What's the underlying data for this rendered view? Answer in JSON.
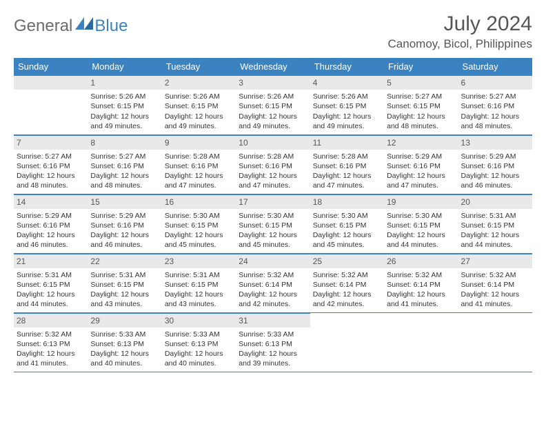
{
  "logo": {
    "word1": "General",
    "word2": "Blue",
    "triangle_color": "#3b83c0"
  },
  "title": "July 2024",
  "location": "Canomoy, Bicol, Philippines",
  "header_bg": "#3b83c0",
  "header_text_color": "#ffffff",
  "daynum_bg": "#e9e9e9",
  "border_color": "#3b83c0",
  "days_of_week": [
    "Sunday",
    "Monday",
    "Tuesday",
    "Wednesday",
    "Thursday",
    "Friday",
    "Saturday"
  ],
  "start_offset": 1,
  "days": [
    {
      "n": 1,
      "sunrise": "5:26 AM",
      "sunset": "6:15 PM",
      "daylight": "12 hours and 49 minutes."
    },
    {
      "n": 2,
      "sunrise": "5:26 AM",
      "sunset": "6:15 PM",
      "daylight": "12 hours and 49 minutes."
    },
    {
      "n": 3,
      "sunrise": "5:26 AM",
      "sunset": "6:15 PM",
      "daylight": "12 hours and 49 minutes."
    },
    {
      "n": 4,
      "sunrise": "5:26 AM",
      "sunset": "6:15 PM",
      "daylight": "12 hours and 49 minutes."
    },
    {
      "n": 5,
      "sunrise": "5:27 AM",
      "sunset": "6:15 PM",
      "daylight": "12 hours and 48 minutes."
    },
    {
      "n": 6,
      "sunrise": "5:27 AM",
      "sunset": "6:16 PM",
      "daylight": "12 hours and 48 minutes."
    },
    {
      "n": 7,
      "sunrise": "5:27 AM",
      "sunset": "6:16 PM",
      "daylight": "12 hours and 48 minutes."
    },
    {
      "n": 8,
      "sunrise": "5:27 AM",
      "sunset": "6:16 PM",
      "daylight": "12 hours and 48 minutes."
    },
    {
      "n": 9,
      "sunrise": "5:28 AM",
      "sunset": "6:16 PM",
      "daylight": "12 hours and 47 minutes."
    },
    {
      "n": 10,
      "sunrise": "5:28 AM",
      "sunset": "6:16 PM",
      "daylight": "12 hours and 47 minutes."
    },
    {
      "n": 11,
      "sunrise": "5:28 AM",
      "sunset": "6:16 PM",
      "daylight": "12 hours and 47 minutes."
    },
    {
      "n": 12,
      "sunrise": "5:29 AM",
      "sunset": "6:16 PM",
      "daylight": "12 hours and 47 minutes."
    },
    {
      "n": 13,
      "sunrise": "5:29 AM",
      "sunset": "6:16 PM",
      "daylight": "12 hours and 46 minutes."
    },
    {
      "n": 14,
      "sunrise": "5:29 AM",
      "sunset": "6:16 PM",
      "daylight": "12 hours and 46 minutes."
    },
    {
      "n": 15,
      "sunrise": "5:29 AM",
      "sunset": "6:16 PM",
      "daylight": "12 hours and 46 minutes."
    },
    {
      "n": 16,
      "sunrise": "5:30 AM",
      "sunset": "6:15 PM",
      "daylight": "12 hours and 45 minutes."
    },
    {
      "n": 17,
      "sunrise": "5:30 AM",
      "sunset": "6:15 PM",
      "daylight": "12 hours and 45 minutes."
    },
    {
      "n": 18,
      "sunrise": "5:30 AM",
      "sunset": "6:15 PM",
      "daylight": "12 hours and 45 minutes."
    },
    {
      "n": 19,
      "sunrise": "5:30 AM",
      "sunset": "6:15 PM",
      "daylight": "12 hours and 44 minutes."
    },
    {
      "n": 20,
      "sunrise": "5:31 AM",
      "sunset": "6:15 PM",
      "daylight": "12 hours and 44 minutes."
    },
    {
      "n": 21,
      "sunrise": "5:31 AM",
      "sunset": "6:15 PM",
      "daylight": "12 hours and 44 minutes."
    },
    {
      "n": 22,
      "sunrise": "5:31 AM",
      "sunset": "6:15 PM",
      "daylight": "12 hours and 43 minutes."
    },
    {
      "n": 23,
      "sunrise": "5:31 AM",
      "sunset": "6:15 PM",
      "daylight": "12 hours and 43 minutes."
    },
    {
      "n": 24,
      "sunrise": "5:32 AM",
      "sunset": "6:14 PM",
      "daylight": "12 hours and 42 minutes."
    },
    {
      "n": 25,
      "sunrise": "5:32 AM",
      "sunset": "6:14 PM",
      "daylight": "12 hours and 42 minutes."
    },
    {
      "n": 26,
      "sunrise": "5:32 AM",
      "sunset": "6:14 PM",
      "daylight": "12 hours and 41 minutes."
    },
    {
      "n": 27,
      "sunrise": "5:32 AM",
      "sunset": "6:14 PM",
      "daylight": "12 hours and 41 minutes."
    },
    {
      "n": 28,
      "sunrise": "5:32 AM",
      "sunset": "6:13 PM",
      "daylight": "12 hours and 41 minutes."
    },
    {
      "n": 29,
      "sunrise": "5:33 AM",
      "sunset": "6:13 PM",
      "daylight": "12 hours and 40 minutes."
    },
    {
      "n": 30,
      "sunrise": "5:33 AM",
      "sunset": "6:13 PM",
      "daylight": "12 hours and 40 minutes."
    },
    {
      "n": 31,
      "sunrise": "5:33 AM",
      "sunset": "6:13 PM",
      "daylight": "12 hours and 39 minutes."
    }
  ],
  "labels": {
    "sunrise": "Sunrise: ",
    "sunset": "Sunset: ",
    "daylight": "Daylight: "
  }
}
